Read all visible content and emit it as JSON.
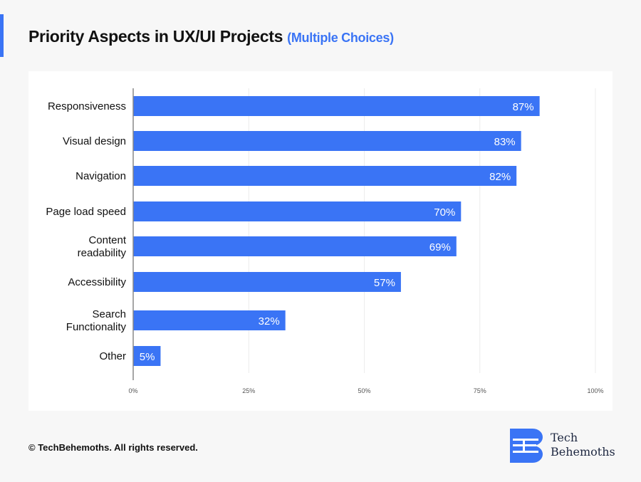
{
  "header": {
    "title": "Priority Aspects in UX/UI Projects",
    "subtitle": "(Multiple Choices)"
  },
  "footer": {
    "copyright": "© TechBehemoths. All rights reserved.",
    "logo_line1": "Tech",
    "logo_line2": "Behemoths"
  },
  "colors": {
    "bar": "#3a74f5",
    "accent": "#3a74f5"
  },
  "chart_data": {
    "type": "bar",
    "orientation": "horizontal",
    "title": "Priority Aspects in UX/UI Projects (Multiple Choices)",
    "categories": [
      [
        "Responsiveness"
      ],
      [
        "Visual design"
      ],
      [
        "Navigation"
      ],
      [
        "Page load speed"
      ],
      [
        "Content",
        "readability"
      ],
      [
        "Accessibility"
      ],
      [
        "Search",
        "Functionality"
      ],
      [
        "Other"
      ]
    ],
    "values": [
      87,
      83,
      82,
      70,
      69,
      57,
      32,
      5
    ],
    "data_labels": [
      "87%",
      "83%",
      "82%",
      "70%",
      "69%",
      "57%",
      "32%",
      "5%"
    ],
    "xlim": [
      0,
      100
    ],
    "xticks": [
      0,
      25,
      50,
      75,
      100
    ],
    "xtick_labels": [
      "0%",
      "25%",
      "50%",
      "75%",
      "100%"
    ],
    "grid": true
  }
}
